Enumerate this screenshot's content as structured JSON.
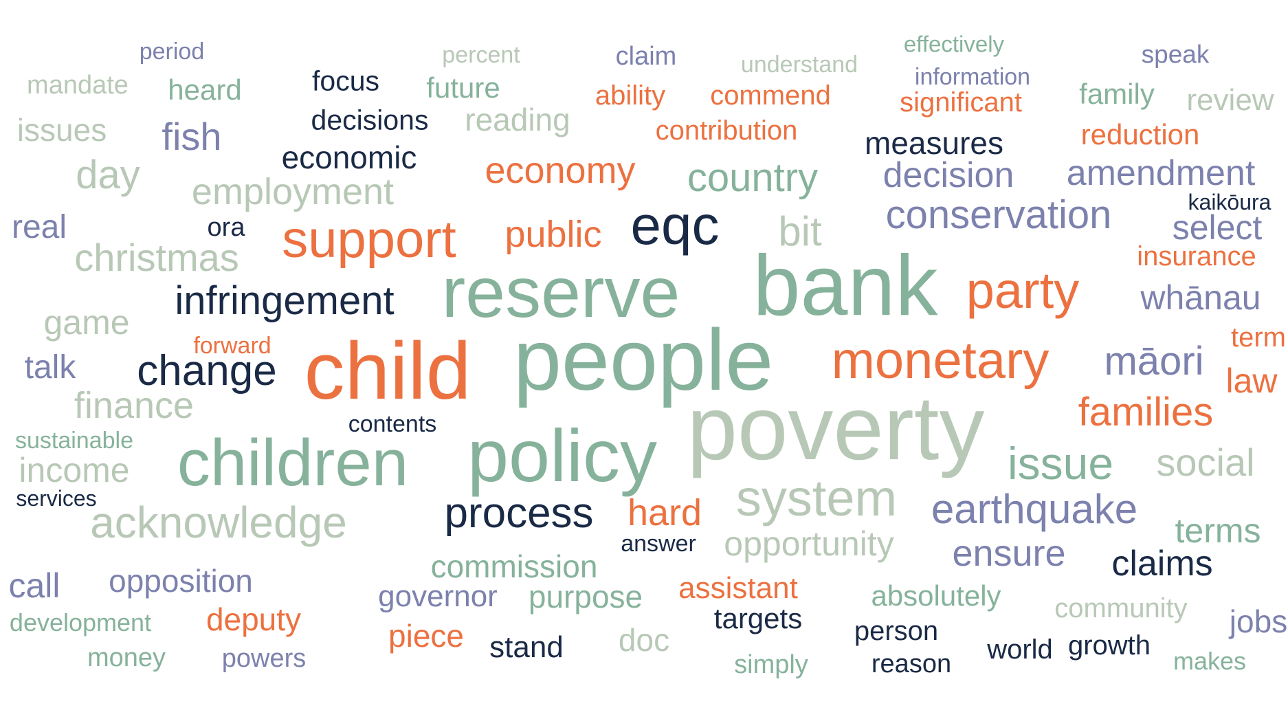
{
  "palette": {
    "orange": "#ec7140",
    "green": "#86b29b",
    "sage": "#b8c8b6",
    "slate": "#7c81ad",
    "navy": "#1a2a46"
  },
  "words": [
    {
      "text": "period",
      "color": "slate"
    },
    {
      "text": "percent",
      "color": "sage"
    },
    {
      "text": "claim",
      "color": "slate"
    },
    {
      "text": "understand",
      "color": "sage"
    },
    {
      "text": "effectively",
      "color": "green"
    },
    {
      "text": "speak",
      "color": "slate"
    },
    {
      "text": "information",
      "color": "slate"
    },
    {
      "text": "mandate",
      "color": "sage"
    },
    {
      "text": "heard",
      "color": "green"
    },
    {
      "text": "focus",
      "color": "navy"
    },
    {
      "text": "future",
      "color": "green"
    },
    {
      "text": "ability",
      "color": "orange"
    },
    {
      "text": "commend",
      "color": "orange"
    },
    {
      "text": "significant",
      "color": "orange"
    },
    {
      "text": "family",
      "color": "green"
    },
    {
      "text": "review",
      "color": "sage"
    },
    {
      "text": "issues",
      "color": "sage"
    },
    {
      "text": "fish",
      "color": "slate"
    },
    {
      "text": "decisions",
      "color": "navy"
    },
    {
      "text": "reading",
      "color": "sage"
    },
    {
      "text": "contribution",
      "color": "orange"
    },
    {
      "text": "measures",
      "color": "navy"
    },
    {
      "text": "reduction",
      "color": "orange"
    },
    {
      "text": "day",
      "color": "sage"
    },
    {
      "text": "economic",
      "color": "navy"
    },
    {
      "text": "economy",
      "color": "orange"
    },
    {
      "text": "country",
      "color": "green"
    },
    {
      "text": "decision",
      "color": "slate"
    },
    {
      "text": "amendment",
      "color": "slate"
    },
    {
      "text": "employment",
      "color": "sage"
    },
    {
      "text": "kaikōura",
      "color": "navy"
    },
    {
      "text": "real",
      "color": "slate"
    },
    {
      "text": "ora",
      "color": "navy"
    },
    {
      "text": "support",
      "color": "orange"
    },
    {
      "text": "eqc",
      "color": "navy"
    },
    {
      "text": "bit",
      "color": "sage"
    },
    {
      "text": "conservation",
      "color": "slate"
    },
    {
      "text": "select",
      "color": "slate"
    },
    {
      "text": "christmas",
      "color": "sage"
    },
    {
      "text": "public",
      "color": "orange"
    },
    {
      "text": "insurance",
      "color": "orange"
    },
    {
      "text": "reserve",
      "color": "green"
    },
    {
      "text": "bank",
      "color": "green"
    },
    {
      "text": "party",
      "color": "orange"
    },
    {
      "text": "infringement",
      "color": "navy"
    },
    {
      "text": "whānau",
      "color": "slate"
    },
    {
      "text": "game",
      "color": "sage"
    },
    {
      "text": "term",
      "color": "orange"
    },
    {
      "text": "forward",
      "color": "orange"
    },
    {
      "text": "talk",
      "color": "slate"
    },
    {
      "text": "change",
      "color": "navy"
    },
    {
      "text": "child",
      "color": "orange"
    },
    {
      "text": "people",
      "color": "green"
    },
    {
      "text": "monetary",
      "color": "orange"
    },
    {
      "text": "māori",
      "color": "slate"
    },
    {
      "text": "law",
      "color": "orange"
    },
    {
      "text": "finance",
      "color": "sage"
    },
    {
      "text": "families",
      "color": "orange"
    },
    {
      "text": "poverty",
      "color": "sage"
    },
    {
      "text": "sustainable",
      "color": "green"
    },
    {
      "text": "contents",
      "color": "navy"
    },
    {
      "text": "children",
      "color": "green"
    },
    {
      "text": "policy",
      "color": "green"
    },
    {
      "text": "issue",
      "color": "green"
    },
    {
      "text": "social",
      "color": "sage"
    },
    {
      "text": "income",
      "color": "sage"
    },
    {
      "text": "services",
      "color": "navy"
    },
    {
      "text": "system",
      "color": "sage"
    },
    {
      "text": "acknowledge",
      "color": "sage"
    },
    {
      "text": "process",
      "color": "navy"
    },
    {
      "text": "hard",
      "color": "orange"
    },
    {
      "text": "earthquake",
      "color": "slate"
    },
    {
      "text": "terms",
      "color": "green"
    },
    {
      "text": "answer",
      "color": "navy"
    },
    {
      "text": "opportunity",
      "color": "sage"
    },
    {
      "text": "ensure",
      "color": "slate"
    },
    {
      "text": "commission",
      "color": "green"
    },
    {
      "text": "claims",
      "color": "navy"
    },
    {
      "text": "call",
      "color": "slate"
    },
    {
      "text": "opposition",
      "color": "slate"
    },
    {
      "text": "assistant",
      "color": "orange"
    },
    {
      "text": "governor",
      "color": "slate"
    },
    {
      "text": "purpose",
      "color": "green"
    },
    {
      "text": "absolutely",
      "color": "green"
    },
    {
      "text": "community",
      "color": "sage"
    },
    {
      "text": "jobs",
      "color": "slate"
    },
    {
      "text": "development",
      "color": "green"
    },
    {
      "text": "deputy",
      "color": "orange"
    },
    {
      "text": "targets",
      "color": "navy"
    },
    {
      "text": "person",
      "color": "navy"
    },
    {
      "text": "piece",
      "color": "orange"
    },
    {
      "text": "doc",
      "color": "sage"
    },
    {
      "text": "world",
      "color": "navy"
    },
    {
      "text": "growth",
      "color": "navy"
    },
    {
      "text": "stand",
      "color": "navy"
    },
    {
      "text": "money",
      "color": "green"
    },
    {
      "text": "powers",
      "color": "slate"
    },
    {
      "text": "simply",
      "color": "green"
    },
    {
      "text": "reason",
      "color": "navy"
    },
    {
      "text": "makes",
      "color": "green"
    }
  ]
}
